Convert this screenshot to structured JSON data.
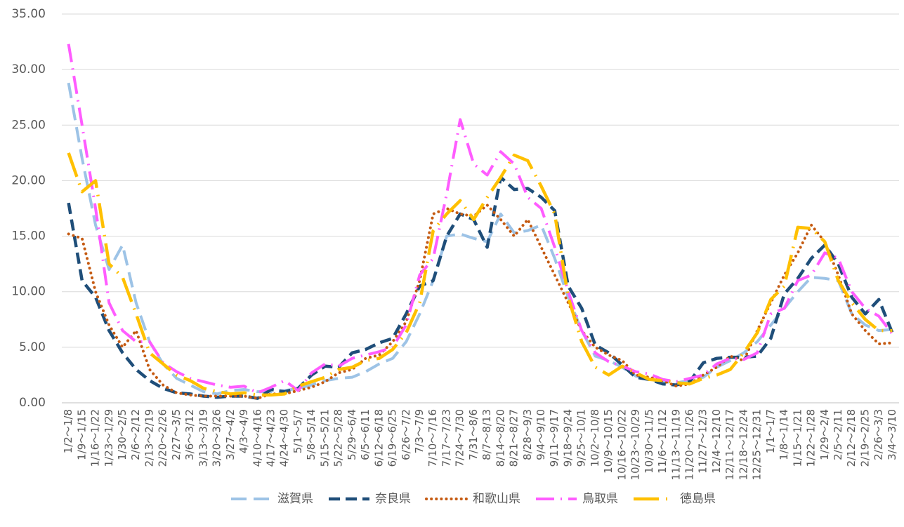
{
  "chart_data": {
    "type": "line",
    "categories": [
      "1/2～1/8",
      "1/9～1/15",
      "1/16～1/22",
      "1/23～1/29",
      "1/30～2/5",
      "2/6～2/12",
      "2/13～2/19",
      "2/20～2/26",
      "2/27～3/5",
      "3/6～3/12",
      "3/13～3/19",
      "3/20～3/26",
      "3/27～4/2",
      "4/3～4/9",
      "4/10～4/16",
      "4/17～4/23",
      "4/24～4/30",
      "5/1～5/7",
      "5/8～5/14",
      "5/15～5/21",
      "5/22～5/28",
      "5/29～6/4",
      "6/5～6/11",
      "6/12～6/18",
      "6/19～6/25",
      "6/26～7/2",
      "7/3～7/9",
      "7/10～7/16",
      "7/17～7/23",
      "7/24～7/30",
      "7/31～8/6",
      "8/7～8/13",
      "8/14～8/20",
      "8/21～8/27",
      "8/28～9/3",
      "9/4～9/10",
      "9/11～9/17",
      "9/18～9/24",
      "9/25～10/1",
      "10/2～10/8",
      "10/9～10/15",
      "10/16～10/22",
      "10/23～10/29",
      "10/30～11/5",
      "11/6～11/12",
      "11/13～11/19",
      "11/20～11/26",
      "11/27～12/3",
      "12/4～12/10",
      "12/11～12/17",
      "12/18～12/24",
      "12/25～12/31",
      "1/1～1/7",
      "1/8～1/14",
      "1/15～1/21",
      "1/22～1/28",
      "1/29～2/4",
      "2/5～2/11",
      "2/12～2/18",
      "2/19～2/25",
      "2/26～3/3",
      "3/4～3/10"
    ],
    "series": [
      {
        "name": "滋賀県",
        "color": "#9dc3e6",
        "values": [
          28.8,
          22,
          16,
          12,
          14.2,
          9,
          5.5,
          3.5,
          2.2,
          1.6,
          1.0,
          0.8,
          1.1,
          1.2,
          1.0,
          1.0,
          1.1,
          1.3,
          1.6,
          2.0,
          2.2,
          2.3,
          2.8,
          3.5,
          4.0,
          5.5,
          8,
          11,
          15,
          15.2,
          14.8,
          14.5,
          17,
          15.3,
          15.5,
          16,
          13,
          9.5,
          6.5,
          4.2,
          3.8,
          3.2,
          2.4,
          2.1,
          1.9,
          1.8,
          2.0,
          2.3,
          3.2,
          3.8,
          4.5,
          5.5,
          7,
          8.5,
          10,
          11.3,
          11.2,
          11,
          8,
          7,
          6.5,
          6.6
        ]
      },
      {
        "name": "奈良県",
        "color": "#1f4e79",
        "values": [
          18,
          11,
          9.5,
          6.5,
          4.5,
          3,
          2,
          1.3,
          0.9,
          0.8,
          0.6,
          0.5,
          0.6,
          0.6,
          0.4,
          1.2,
          1.0,
          1.3,
          2.5,
          3.3,
          3.2,
          4.5,
          4.8,
          5.4,
          5.8,
          8,
          10.5,
          11,
          15,
          17,
          16.5,
          14,
          20.3,
          19.2,
          19.3,
          18.5,
          17.3,
          10.5,
          8.5,
          5.2,
          4.5,
          3.4,
          2.3,
          2.1,
          1.7,
          1.6,
          1.9,
          3.6,
          4.0,
          4.1,
          4.1,
          4.2,
          5.8,
          9.8,
          11.2,
          13,
          14.2,
          12.5,
          9.5,
          8,
          9.3,
          6.3
        ]
      },
      {
        "name": "和歌山県",
        "color": "#c55a11",
        "values": [
          15.2,
          14.8,
          10,
          7,
          5,
          6.5,
          3,
          1.6,
          0.9,
          0.7,
          0.6,
          0.6,
          0.6,
          0.6,
          0.4,
          0.8,
          0.8,
          1.1,
          1.4,
          1.9,
          2.7,
          3,
          4,
          4.3,
          5.5,
          7.3,
          11,
          17,
          17.5,
          17,
          16.8,
          17.8,
          16.5,
          15,
          16.5,
          14,
          11.5,
          9,
          6.5,
          5,
          4.3,
          3.8,
          2.5,
          2.3,
          2,
          1.5,
          1.7,
          2.5,
          3.2,
          4.2,
          3.8,
          6.5,
          9,
          11.5,
          13.5,
          16,
          14.5,
          11.5,
          8,
          6.5,
          5.3,
          5.4
        ]
      },
      {
        "name": "鳥取県",
        "color": "#ff5cff",
        "values": [
          32.3,
          25,
          17.5,
          9,
          6.5,
          5.5,
          5.5,
          3.6,
          2.8,
          2.2,
          1.9,
          1.6,
          1.4,
          1.5,
          0.9,
          1.4,
          2,
          1.1,
          2.7,
          3.5,
          3.3,
          4,
          4.3,
          4.6,
          5,
          7,
          11.5,
          13,
          18.8,
          25.5,
          21.5,
          20.5,
          22.6,
          21.5,
          18.5,
          17.5,
          14,
          10,
          6.5,
          4.5,
          3.7,
          3.3,
          2.8,
          2.6,
          2.1,
          1.9,
          2.2,
          2.5,
          3.5,
          4,
          3.9,
          4.5,
          8,
          8.5,
          11,
          11.5,
          13.5,
          13,
          10,
          8.5,
          7.8,
          6.2
        ]
      },
      {
        "name": "徳島県",
        "color": "#ffc000",
        "values": [
          22.5,
          19,
          20,
          12.5,
          11.3,
          8,
          4.5,
          3.5,
          2.5,
          2,
          1.3,
          1.0,
          0.8,
          0.9,
          0.7,
          0.7,
          0.8,
          1.5,
          1.9,
          2.3,
          3,
          3.2,
          3.8,
          4.0,
          4.8,
          6.3,
          9,
          15.5,
          17,
          18.2,
          16.5,
          18.5,
          20.3,
          22.3,
          21.8,
          19.5,
          17,
          9.5,
          5.5,
          3.2,
          2.5,
          3.3,
          2.7,
          2.1,
          2,
          1.8,
          1.7,
          2.2,
          2.5,
          3,
          4.5,
          6.3,
          9.3,
          10.5,
          15.8,
          15.7,
          14.5,
          11,
          9,
          7.5,
          6.5,
          6.5
        ]
      }
    ],
    "ylim": [
      0,
      35
    ],
    "yticks": [
      {
        "value": 0,
        "label": "0.00"
      },
      {
        "value": 5,
        "label": "5.00"
      },
      {
        "value": 10,
        "label": "10.00"
      },
      {
        "value": 15,
        "label": "15.00"
      },
      {
        "value": 20,
        "label": "20.00"
      },
      {
        "value": 25,
        "label": "25.00"
      },
      {
        "value": 30,
        "label": "30.00"
      },
      {
        "value": 35,
        "label": "35.00"
      }
    ],
    "grid": true,
    "legend": "bottom"
  }
}
